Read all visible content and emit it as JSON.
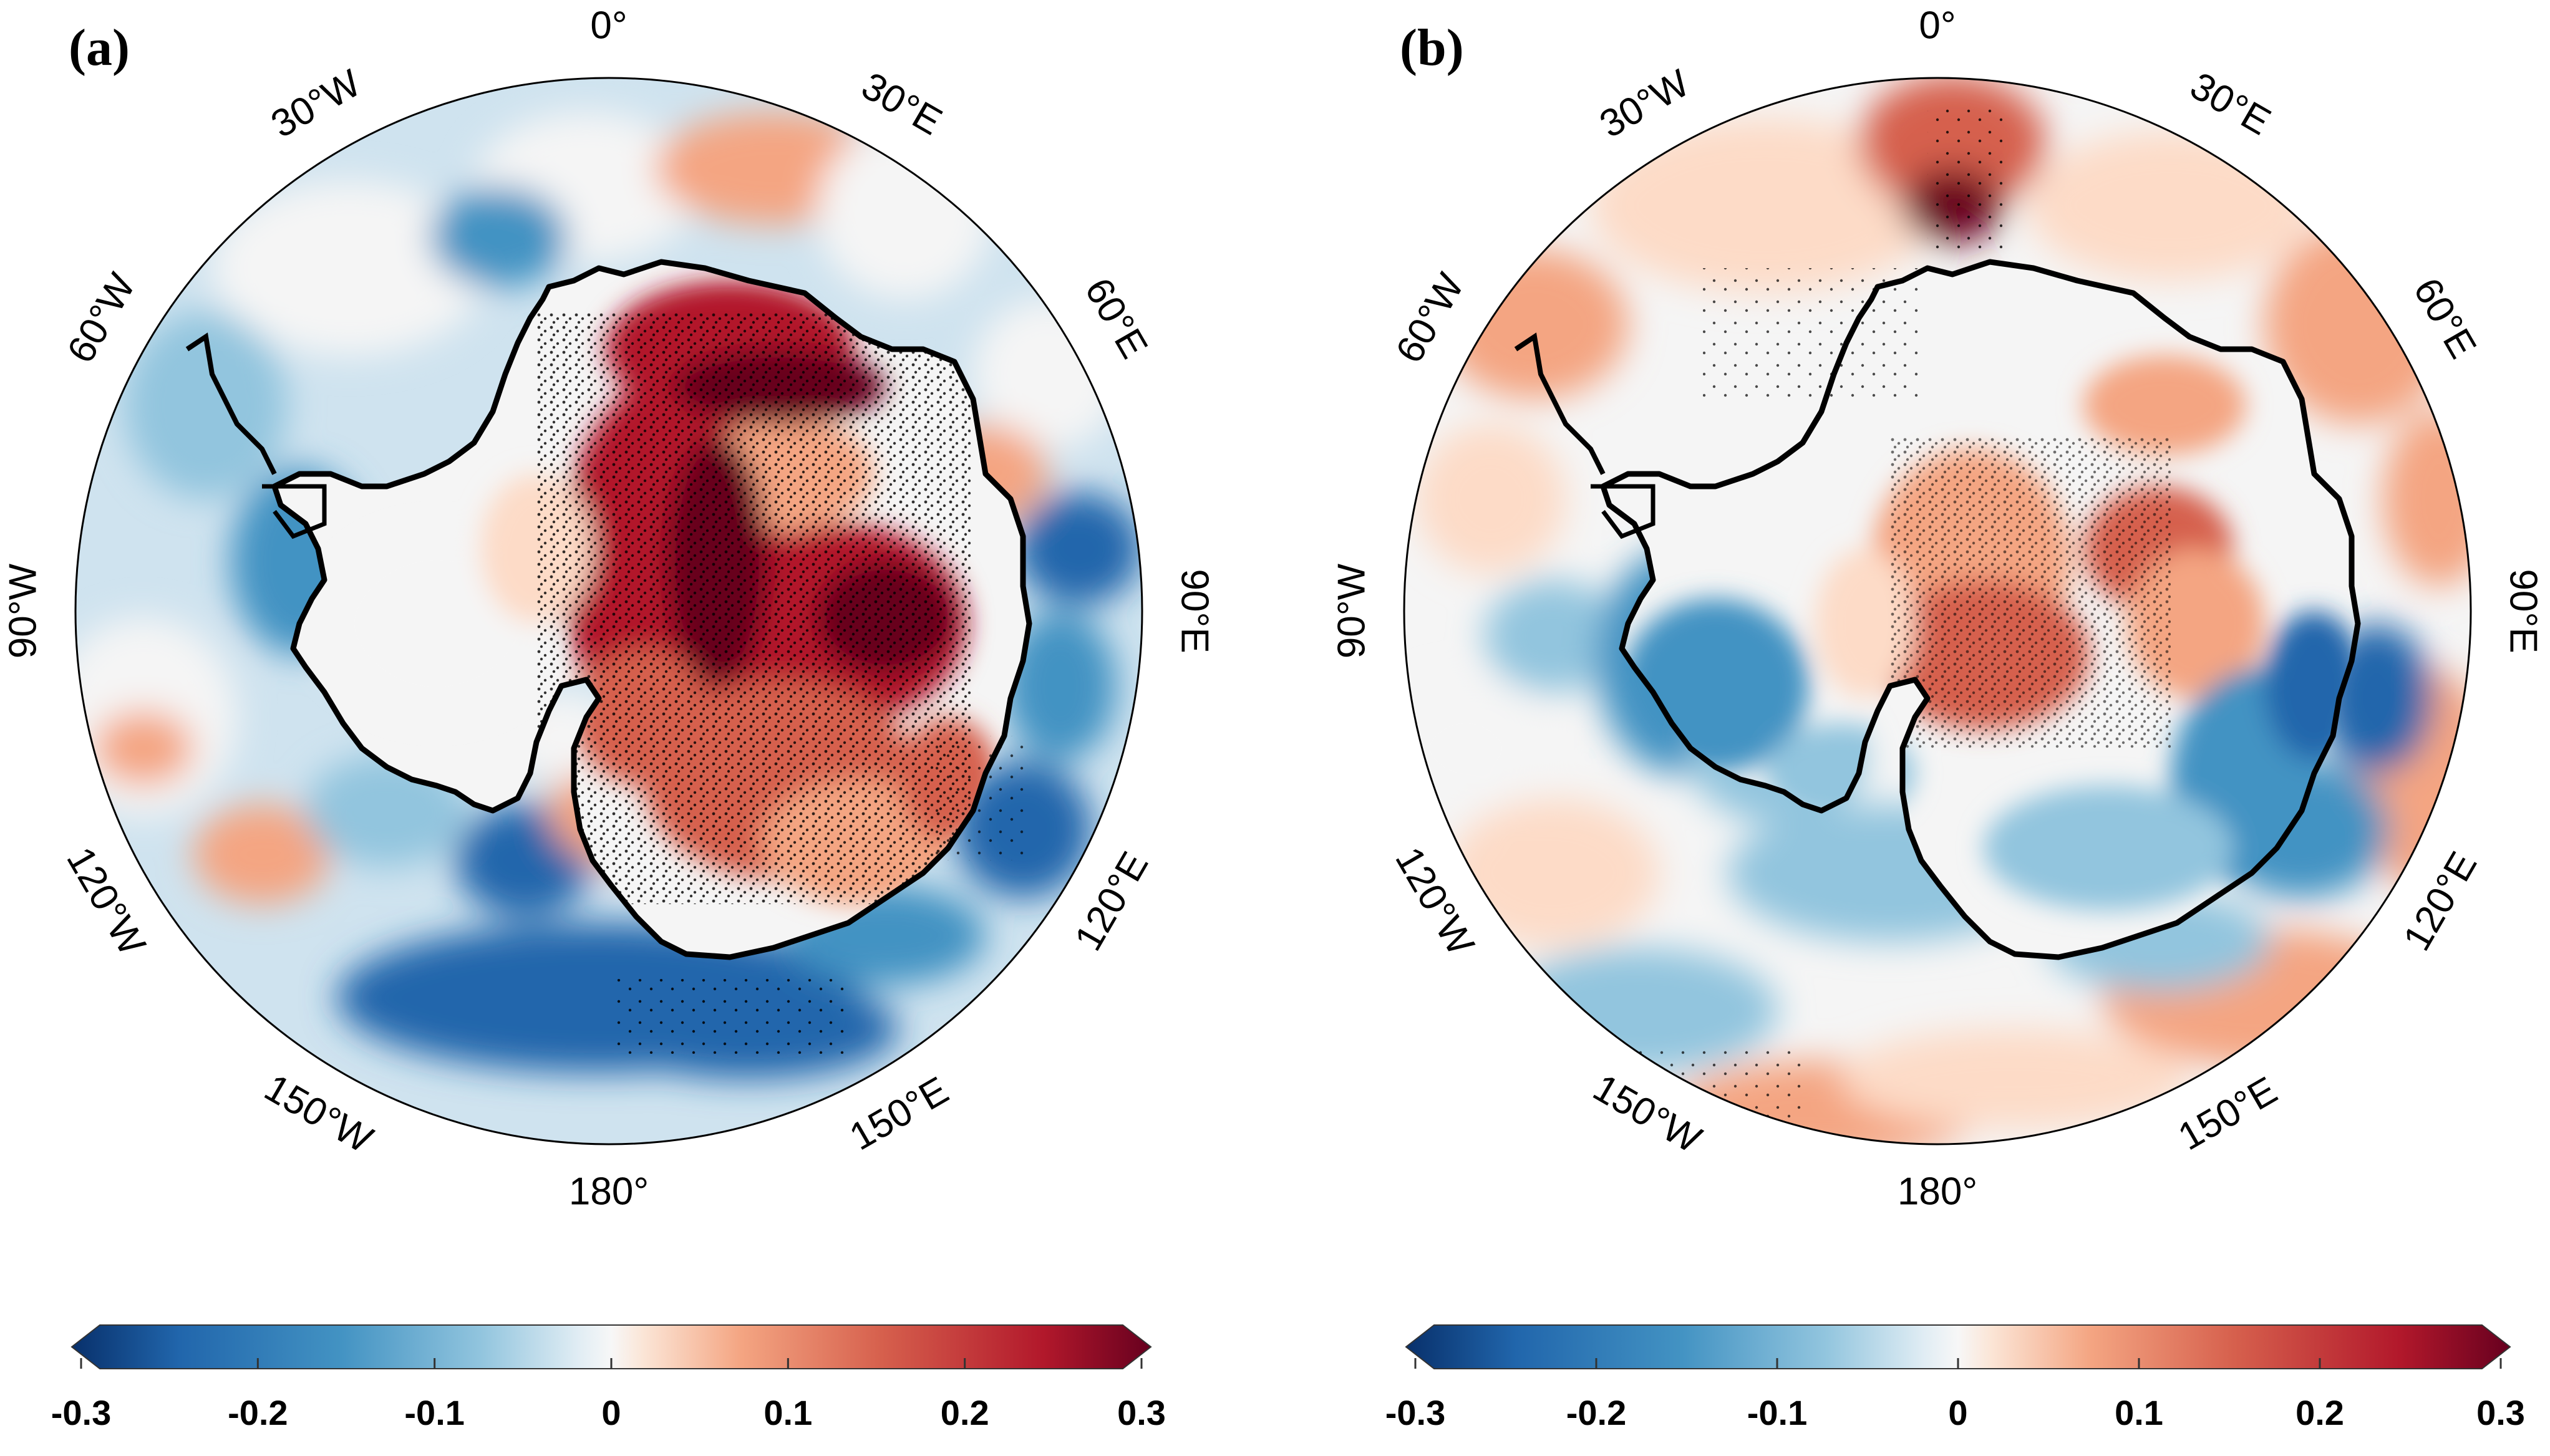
{
  "figure": {
    "panels": [
      {
        "label": "(a)",
        "meridian_labels": [
          "0°",
          "30°E",
          "60°E",
          "90°E",
          "120°E",
          "150°E",
          "180°",
          "150°W",
          "120°W",
          "90°W",
          "60°W",
          "30°W"
        ],
        "colorbar": {
          "min": -0.3,
          "max": 0.3,
          "tick_labels": [
            "-0.3",
            "-0.2",
            "-0.1",
            "0",
            "0.1",
            "0.2",
            "0.3"
          ]
        }
      },
      {
        "label": "(b)",
        "meridian_labels": [
          "0°",
          "30°E",
          "60°E",
          "90°E",
          "120°E",
          "150°E",
          "180°",
          "150°W",
          "120°W",
          "90°W",
          "60°W",
          "30°W"
        ],
        "colorbar": {
          "min": -0.3,
          "max": 0.3,
          "tick_labels": [
            "-0.3",
            "-0.2",
            "-0.1",
            "0",
            "0.1",
            "0.2",
            "0.3"
          ]
        }
      }
    ],
    "colormap": [
      "#08306b",
      "#2166ac",
      "#4393c3",
      "#92c5de",
      "#d1e5f0",
      "#f5f5f5",
      "#fddbc7",
      "#f4a582",
      "#d6604d",
      "#b2182b",
      "#67001f"
    ]
  }
}
